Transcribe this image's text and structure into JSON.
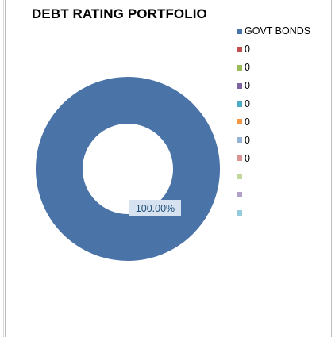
{
  "chart_data": {
    "type": "doughnut",
    "title": "DEBT RATING PORTFOLIO",
    "slices": [
      {
        "label": "GOVT BONDS",
        "value": 100.0,
        "color": "#4a73a8"
      }
    ],
    "data_labels": [
      "100.00%"
    ],
    "legend": {
      "placement": "right",
      "items": [
        {
          "label": "GOVT BONDS",
          "color": "#4a73a8"
        },
        {
          "label": "0",
          "color": "#c0504d"
        },
        {
          "label": "0",
          "color": "#9bbb59"
        },
        {
          "label": "0",
          "color": "#8064a2"
        },
        {
          "label": "0",
          "color": "#4bacc6"
        },
        {
          "label": "0",
          "color": "#f79646"
        },
        {
          "label": "0",
          "color": "#95b3d7"
        },
        {
          "label": "0",
          "color": "#d99694"
        },
        {
          "label": "",
          "color": "#c3d69b"
        },
        {
          "label": "",
          "color": "#b3a2c7"
        },
        {
          "label": "",
          "color": "#93cddd"
        }
      ]
    },
    "data_label_bg": "#d6e2ef",
    "data_label_color": "#1f4e79"
  }
}
